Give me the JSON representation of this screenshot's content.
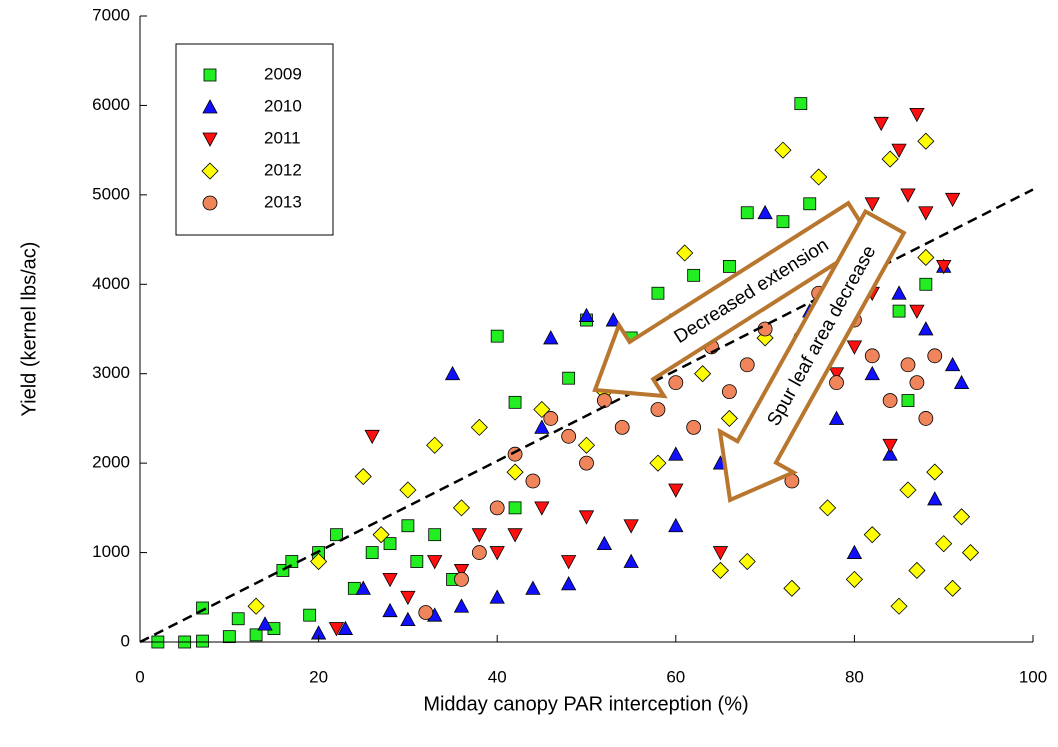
{
  "chart_data": {
    "type": "scatter",
    "x_label": "Midday canopy PAR interception (%)",
    "y_label": "Yield (kernel lbs/ac)",
    "xlim": [
      0,
      100
    ],
    "xticks": [
      0,
      20,
      40,
      60,
      80,
      100
    ],
    "ylim": [
      0,
      7000
    ],
    "yticks": [
      0,
      1000,
      2000,
      3000,
      4000,
      5000,
      6000,
      7000
    ],
    "grid": false,
    "legend": "upper left",
    "trendline": {
      "x": [
        0,
        100
      ],
      "y": [
        0,
        5060
      ]
    },
    "annotations": [
      "Decreased extension",
      "Spur leaf area decrease"
    ],
    "series": [
      {
        "name": "2009",
        "color": "#22ee22",
        "marker": "square",
        "x": [
          2,
          5,
          7,
          7,
          10,
          11,
          13,
          15,
          16,
          17,
          19,
          20,
          22,
          24,
          26,
          28,
          30,
          31,
          33,
          40,
          42,
          48,
          50,
          55,
          58,
          60,
          62,
          66,
          68,
          72,
          74,
          75,
          78,
          85,
          88,
          86,
          42,
          35
        ],
        "y": [
          0,
          0,
          10,
          380,
          60,
          260,
          80,
          150,
          800,
          900,
          300,
          1000,
          1200,
          600,
          1000,
          1100,
          1300,
          900,
          1200,
          3420,
          2680,
          2950,
          3600,
          3400,
          3900,
          3600,
          4100,
          4200,
          4800,
          4700,
          6020,
          4900,
          4600,
          3700,
          4000,
          2700,
          1500,
          700
        ]
      },
      {
        "name": "2010",
        "color": "#1010ff",
        "marker": "triangle",
        "x": [
          14,
          20,
          23,
          25,
          28,
          30,
          33,
          36,
          35,
          40,
          44,
          46,
          48,
          50,
          52,
          53,
          55,
          58,
          60,
          65,
          70,
          75,
          78,
          80,
          82,
          85,
          88,
          90,
          91,
          92,
          84,
          89,
          60,
          45
        ],
        "y": [
          200,
          100,
          150,
          600,
          350,
          250,
          300,
          400,
          3000,
          500,
          600,
          3400,
          650,
          3650,
          1100,
          3600,
          900,
          3200,
          1300,
          2000,
          4800,
          3700,
          2500,
          1000,
          3000,
          3900,
          3500,
          4200,
          3100,
          2900,
          2100,
          1600,
          2100,
          2400
        ]
      },
      {
        "name": "2011",
        "color": "#ff1010",
        "marker": "triangle-down",
        "x": [
          22,
          26,
          28,
          30,
          33,
          36,
          38,
          40,
          42,
          45,
          48,
          50,
          55,
          60,
          65,
          70,
          75,
          78,
          80,
          82,
          83,
          85,
          86,
          87,
          88,
          90,
          91,
          84,
          87,
          82
        ],
        "y": [
          150,
          2300,
          700,
          500,
          900,
          800,
          1200,
          1000,
          1200,
          1500,
          900,
          1400,
          1300,
          1700,
          1000,
          2200,
          2800,
          3000,
          3300,
          4900,
          5800,
          5500,
          5000,
          5900,
          4800,
          4200,
          4950,
          2200,
          3700,
          3900
        ]
      },
      {
        "name": "2012",
        "color": "#ffff00",
        "marker": "diamond",
        "x": [
          13,
          20,
          25,
          27,
          30,
          33,
          36,
          38,
          42,
          45,
          50,
          52,
          55,
          58,
          61,
          63,
          65,
          66,
          68,
          70,
          72,
          73,
          74,
          76,
          77,
          80,
          82,
          84,
          85,
          86,
          87,
          88,
          89,
          90,
          91,
          92,
          93,
          88
        ],
        "y": [
          400,
          900,
          1850,
          1200,
          1700,
          2200,
          1500,
          2400,
          1900,
          2600,
          2200,
          2800,
          3200,
          2000,
          4350,
          3000,
          800,
          2500,
          900,
          3400,
          5500,
          600,
          4500,
          5200,
          1500,
          700,
          1200,
          5400,
          400,
          1700,
          800,
          5600,
          1900,
          1100,
          600,
          1400,
          1000,
          4300
        ]
      },
      {
        "name": "2013",
        "color": "#f0845a",
        "marker": "circle",
        "x": [
          32,
          36,
          38,
          40,
          42,
          44,
          46,
          48,
          50,
          52,
          54,
          56,
          58,
          60,
          62,
          64,
          66,
          68,
          70,
          72,
          74,
          76,
          78,
          80,
          82,
          84,
          86,
          87,
          88,
          89,
          73
        ],
        "y": [
          330,
          700,
          1000,
          1500,
          2100,
          1800,
          2500,
          2300,
          2000,
          2700,
          2400,
          3000,
          2600,
          2900,
          2400,
          3300,
          2800,
          3100,
          3500,
          2500,
          3400,
          3900,
          2900,
          3600,
          3200,
          2700,
          3100,
          2900,
          2500,
          3200,
          1800
        ]
      }
    ]
  }
}
